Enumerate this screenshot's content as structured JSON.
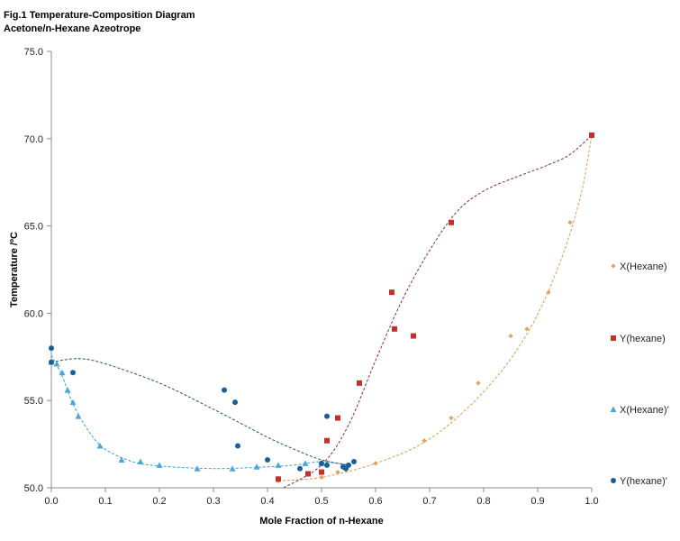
{
  "chart_data": {
    "type": "scatter",
    "title": "Fig.1 Temperature-Composition Diagram",
    "subtitle": "Acetone/n-Hexane Azeotrope",
    "xlabel": "Mole Fraction of n-Hexane",
    "ylabel": "Temperature /ºC",
    "xlim": [
      0.0,
      1.0
    ],
    "ylim": [
      50.0,
      75.0
    ],
    "x_ticks": [
      "0.0",
      "0.1",
      "0.2",
      "0.3",
      "0.4",
      "0.5",
      "0.6",
      "0.7",
      "0.8",
      "0.9",
      "1.0"
    ],
    "y_ticks": [
      "50.0",
      "55.0",
      "60.0",
      "65.0",
      "70.0",
      "75.0"
    ],
    "grid": false,
    "legend_position": "right",
    "series": [
      {
        "name": "X(Hexane)",
        "marker": "diamond",
        "color": "#e0a060",
        "trendline_color": "#e09a50",
        "points": [
          [
            0.42,
            50.4
          ],
          [
            0.5,
            50.6
          ],
          [
            0.53,
            50.9
          ],
          [
            0.6,
            51.4
          ],
          [
            0.69,
            52.7
          ],
          [
            0.74,
            54.0
          ],
          [
            0.79,
            56.0
          ],
          [
            0.85,
            58.7
          ],
          [
            0.88,
            59.1
          ],
          [
            0.92,
            61.2
          ],
          [
            0.96,
            65.2
          ],
          [
            1.0,
            70.2
          ]
        ],
        "trend": [
          [
            0.42,
            50.4
          ],
          [
            0.5,
            50.6
          ],
          [
            0.6,
            51.4
          ],
          [
            0.7,
            52.8
          ],
          [
            0.8,
            55.5
          ],
          [
            0.88,
            58.8
          ],
          [
            0.94,
            62.8
          ],
          [
            0.98,
            66.8
          ],
          [
            1.0,
            70.2
          ]
        ]
      },
      {
        "name": "Y(hexane)",
        "marker": "square",
        "color": "#c0312b",
        "trendline_color": "#8b2a3a",
        "points": [
          [
            0.42,
            50.5
          ],
          [
            0.475,
            50.8
          ],
          [
            0.5,
            50.9
          ],
          [
            0.51,
            52.7
          ],
          [
            0.53,
            54.0
          ],
          [
            0.57,
            56.0
          ],
          [
            0.63,
            61.2
          ],
          [
            0.635,
            59.1
          ],
          [
            0.67,
            58.7
          ],
          [
            0.74,
            65.2
          ],
          [
            1.0,
            70.2
          ]
        ],
        "trend": [
          [
            0.43,
            50.0
          ],
          [
            0.5,
            51.3
          ],
          [
            0.55,
            53.6
          ],
          [
            0.6,
            57.3
          ],
          [
            0.65,
            60.8
          ],
          [
            0.7,
            63.6
          ],
          [
            0.75,
            65.8
          ],
          [
            0.8,
            67.0
          ],
          [
            0.86,
            67.8
          ],
          [
            0.92,
            68.5
          ],
          [
            0.96,
            69.1
          ],
          [
            1.0,
            70.2
          ]
        ]
      },
      {
        "name": "X(Hexane)'",
        "marker": "triangle",
        "color": "#4aa8d8",
        "trendline_color": "#3aa0d8",
        "points": [
          [
            0.0,
            57.2
          ],
          [
            0.01,
            57.1
          ],
          [
            0.02,
            56.6
          ],
          [
            0.03,
            55.6
          ],
          [
            0.04,
            54.9
          ],
          [
            0.05,
            54.1
          ],
          [
            0.09,
            52.4
          ],
          [
            0.13,
            51.6
          ],
          [
            0.165,
            51.5
          ],
          [
            0.2,
            51.3
          ],
          [
            0.27,
            51.1
          ],
          [
            0.335,
            51.1
          ],
          [
            0.38,
            51.2
          ],
          [
            0.42,
            51.3
          ],
          [
            0.47,
            51.4
          ],
          [
            0.5,
            51.4
          ]
        ],
        "trend": [
          [
            0.0,
            57.6
          ],
          [
            0.02,
            56.4
          ],
          [
            0.04,
            54.8
          ],
          [
            0.07,
            53.2
          ],
          [
            0.1,
            52.2
          ],
          [
            0.15,
            51.5
          ],
          [
            0.2,
            51.25
          ],
          [
            0.3,
            51.1
          ],
          [
            0.4,
            51.2
          ],
          [
            0.45,
            51.3
          ],
          [
            0.5,
            51.5
          ],
          [
            0.55,
            51.3
          ]
        ]
      },
      {
        "name": "Y(hexane)'",
        "marker": "circle",
        "color": "#1a5f95",
        "trendline_color": "#1f4f7a",
        "points": [
          [
            0.0,
            58.0
          ],
          [
            0.0,
            57.2
          ],
          [
            0.04,
            56.6
          ],
          [
            0.32,
            55.6
          ],
          [
            0.34,
            54.9
          ],
          [
            0.345,
            52.4
          ],
          [
            0.4,
            51.6
          ],
          [
            0.46,
            51.1
          ],
          [
            0.5,
            51.4
          ],
          [
            0.51,
            54.1
          ],
          [
            0.51,
            51.3
          ],
          [
            0.54,
            51.2
          ],
          [
            0.545,
            51.1
          ],
          [
            0.55,
            51.3
          ],
          [
            0.56,
            51.5
          ]
        ],
        "trend": [
          [
            0.0,
            57.2
          ],
          [
            0.05,
            57.4
          ],
          [
            0.1,
            57.1
          ],
          [
            0.2,
            56.0
          ],
          [
            0.3,
            54.5
          ],
          [
            0.4,
            52.9
          ],
          [
            0.45,
            52.2
          ],
          [
            0.5,
            51.6
          ],
          [
            0.55,
            51.3
          ]
        ]
      }
    ]
  }
}
